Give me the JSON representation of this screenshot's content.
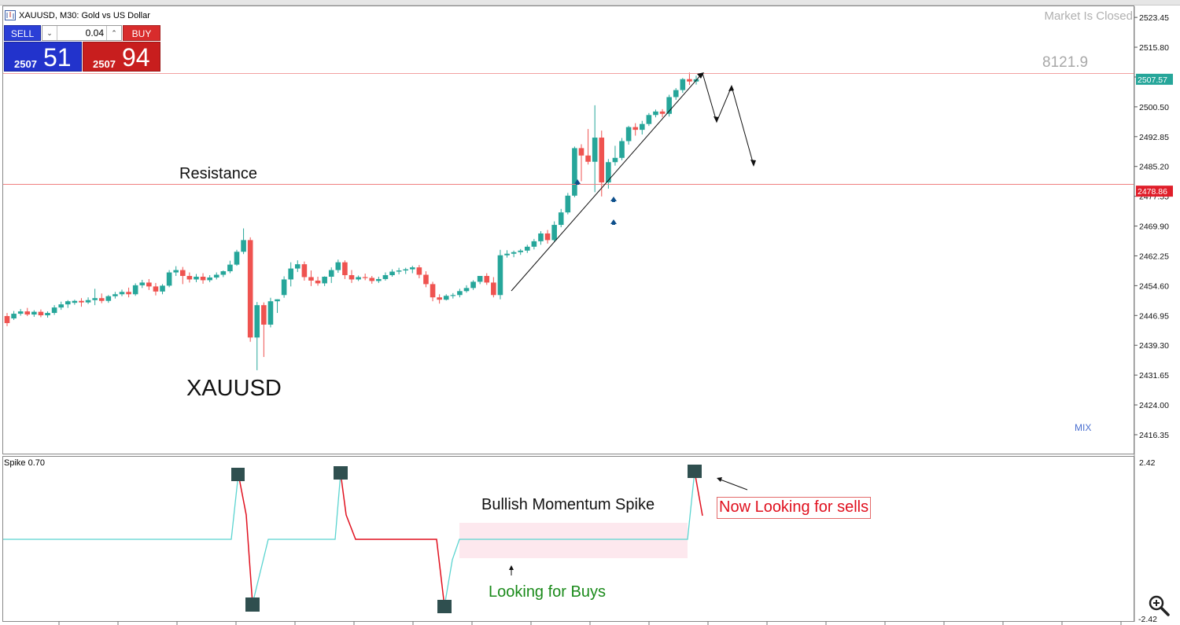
{
  "window": {
    "title": "XAUUSD, M30:  Gold vs US Dollar",
    "status": "Market Is Closed",
    "counter": "8121.9"
  },
  "trade_panel": {
    "sell_label": "SELL",
    "buy_label": "BUY",
    "volume": "0.04",
    "sell_small": "2507",
    "sell_big": "51",
    "buy_small": "2507",
    "buy_big": "94"
  },
  "annotations": {
    "resistance": "Resistance",
    "symbol": "XAUUSD",
    "mix": "MIX",
    "momentum": "Bullish Momentum Spike",
    "buys": "Looking for Buys",
    "sells": "Now Looking for sells"
  },
  "indicator": {
    "name": "Spike 0.70",
    "top_label": "2.42",
    "bottom_label": "-2.42"
  },
  "colors": {
    "bull": "#26a69a",
    "bear": "#ef5350",
    "resistance_line": "#f08080",
    "spike_line": "#5bd4d0",
    "spike_down": "#e0101e",
    "marker": "#2f4f4f",
    "arrow_marker": "#0d4f8b",
    "highlight": "#fde8ee"
  },
  "chart_data": {
    "type": "candlestick",
    "symbol": "XAUUSD",
    "timeframe": "M30",
    "y_ticks": [
      "2523.45",
      "2515.80",
      "2508.15",
      "2500.50",
      "2492.85",
      "2485.20",
      "2477.55",
      "2469.90",
      "2462.25",
      "2454.60",
      "2446.95",
      "2439.30",
      "2431.65",
      "2424.00",
      "2416.35"
    ],
    "ylim": [
      2411.5,
      2526.3
    ],
    "current_price": "2507.57",
    "resistance_price": "2478.86",
    "candles": [
      [
        2446.8,
        2447.6,
        2445.0,
        2444.2
      ],
      [
        2446.2,
        2448.1,
        2447.4,
        2445.8
      ],
      [
        2447.4,
        2448.6,
        2448.0,
        2446.9
      ],
      [
        2448.0,
        2448.9,
        2447.2,
        2446.8
      ],
      [
        2447.2,
        2448.3,
        2447.9,
        2446.6
      ],
      [
        2447.9,
        2448.5,
        2447.0,
        2446.5
      ],
      [
        2447.0,
        2448.0,
        2447.6,
        2446.4
      ],
      [
        2447.6,
        2449.6,
        2449.0,
        2447.1
      ],
      [
        2449.0,
        2450.5,
        2449.8,
        2448.4
      ],
      [
        2449.8,
        2450.9,
        2450.6,
        2448.9
      ],
      [
        2450.2,
        2451.0,
        2450.7,
        2449.7
      ],
      [
        2450.7,
        2451.4,
        2450.3,
        2449.2
      ],
      [
        2450.3,
        2451.6,
        2450.9,
        2449.9
      ],
      [
        2450.9,
        2453.8,
        2451.4,
        2449.6
      ],
      [
        2451.4,
        2452.6,
        2450.7,
        2450.1
      ],
      [
        2450.7,
        2452.2,
        2451.9,
        2450.2
      ],
      [
        2451.9,
        2453.0,
        2452.4,
        2451.3
      ],
      [
        2452.4,
        2453.6,
        2453.0,
        2451.9
      ],
      [
        2453.0,
        2454.1,
        2452.4,
        2451.6
      ],
      [
        2452.4,
        2455.2,
        2454.7,
        2452.0
      ],
      [
        2454.7,
        2456.1,
        2455.4,
        2454.0
      ],
      [
        2455.4,
        2456.3,
        2454.4,
        2453.5
      ],
      [
        2454.4,
        2455.3,
        2453.1,
        2452.1
      ],
      [
        2453.1,
        2455.0,
        2454.6,
        2452.4
      ],
      [
        2454.6,
        2458.6,
        2458.0,
        2454.2
      ],
      [
        2458.0,
        2459.6,
        2458.6,
        2457.1
      ],
      [
        2458.6,
        2459.4,
        2457.1,
        2455.0
      ],
      [
        2457.1,
        2458.0,
        2456.2,
        2455.4
      ],
      [
        2456.2,
        2457.6,
        2456.9,
        2455.5
      ],
      [
        2456.9,
        2457.8,
        2456.0,
        2455.1
      ],
      [
        2456.0,
        2457.3,
        2456.7,
        2455.5
      ],
      [
        2456.7,
        2458.0,
        2457.4,
        2456.2
      ],
      [
        2457.4,
        2458.5,
        2458.3,
        2456.8
      ],
      [
        2458.3,
        2461.0,
        2460.0,
        2457.8
      ],
      [
        2460.0,
        2463.8,
        2463.3,
        2459.7
      ],
      [
        2463.3,
        2469.3,
        2466.3,
        2462.7
      ],
      [
        2466.3,
        2467.0,
        2441.3,
        2440.2
      ],
      [
        2441.3,
        2450.4,
        2449.6,
        2432.9
      ],
      [
        2449.6,
        2450.3,
        2444.6,
        2436.3
      ],
      [
        2444.6,
        2451.5,
        2450.6,
        2443.9
      ],
      [
        2450.6,
        2451.1,
        2451.1,
        2447.6
      ],
      [
        2452.2,
        2457.0,
        2456.2,
        2451.5
      ],
      [
        2456.2,
        2460.6,
        2459.0,
        2454.4
      ],
      [
        2459.0,
        2461.1,
        2460.1,
        2458.1
      ],
      [
        2460.1,
        2460.8,
        2456.8,
        2455.9
      ],
      [
        2456.8,
        2458.5,
        2455.9,
        2454.5
      ],
      [
        2455.9,
        2456.9,
        2455.2,
        2454.6
      ],
      [
        2455.2,
        2457.0,
        2456.9,
        2454.5
      ],
      [
        2456.9,
        2459.3,
        2458.6,
        2455.3
      ],
      [
        2458.6,
        2461.3,
        2460.6,
        2457.9
      ],
      [
        2460.6,
        2461.1,
        2457.3,
        2456.3
      ],
      [
        2457.3,
        2458.6,
        2456.2,
        2455.3
      ],
      [
        2456.2,
        2457.2,
        2456.8,
        2455.8
      ],
      [
        2456.8,
        2457.7,
        2456.6,
        2456.0
      ],
      [
        2456.6,
        2457.1,
        2455.8,
        2455.1
      ],
      [
        2455.8,
        2456.9,
        2456.3,
        2455.3
      ],
      [
        2456.3,
        2458.0,
        2457.3,
        2455.9
      ],
      [
        2457.3,
        2458.8,
        2458.2,
        2456.9
      ],
      [
        2458.2,
        2459.2,
        2458.5,
        2457.5
      ],
      [
        2458.5,
        2459.2,
        2458.8,
        2457.6
      ],
      [
        2458.8,
        2459.7,
        2459.3,
        2457.8
      ],
      [
        2459.3,
        2459.9,
        2457.4,
        2456.5
      ],
      [
        2457.4,
        2458.3,
        2455.0,
        2454.2
      ],
      [
        2455.0,
        2455.6,
        2451.6,
        2450.6
      ],
      [
        2451.6,
        2452.4,
        2451.0,
        2450.0
      ],
      [
        2451.0,
        2452.4,
        2452.0,
        2450.8
      ],
      [
        2452.0,
        2452.7,
        2452.2,
        2451.3
      ],
      [
        2452.2,
        2453.8,
        2453.2,
        2451.6
      ],
      [
        2453.2,
        2454.7,
        2454.0,
        2452.8
      ],
      [
        2454.0,
        2456.0,
        2455.6,
        2453.5
      ],
      [
        2455.6,
        2457.1,
        2457.1,
        2455.0
      ],
      [
        2457.1,
        2457.8,
        2455.4,
        2454.8
      ],
      [
        2455.4,
        2456.8,
        2452.2,
        2451.6
      ],
      [
        2452.2,
        2463.8,
        2462.4,
        2451.1
      ],
      [
        2462.4,
        2463.7,
        2462.8,
        2461.8
      ],
      [
        2462.8,
        2463.6,
        2463.2,
        2461.9
      ],
      [
        2463.2,
        2464.0,
        2463.6,
        2462.5
      ],
      [
        2463.6,
        2465.1,
        2464.6,
        2463.0
      ],
      [
        2464.6,
        2466.6,
        2466.0,
        2463.9
      ],
      [
        2466.0,
        2468.6,
        2468.0,
        2465.1
      ],
      [
        2468.0,
        2468.9,
        2466.3,
        2465.4
      ],
      [
        2466.3,
        2471.1,
        2470.2,
        2465.9
      ],
      [
        2470.2,
        2474.3,
        2473.4,
        2469.6
      ],
      [
        2473.4,
        2478.4,
        2477.7,
        2472.9
      ],
      [
        2477.7,
        2490.3,
        2489.9,
        2477.3
      ],
      [
        2489.9,
        2490.9,
        2488.0,
        2481.4
      ],
      [
        2488.0,
        2494.8,
        2486.4,
        2485.7
      ],
      [
        2486.4,
        2500.9,
        2492.6,
        2478.6
      ],
      [
        2492.6,
        2494.4,
        2481.1,
        2477.5
      ],
      [
        2481.1,
        2487.1,
        2486.3,
        2479.5
      ],
      [
        2486.3,
        2490.5,
        2487.4,
        2485.4
      ],
      [
        2487.4,
        2492.5,
        2491.7,
        2486.8
      ],
      [
        2491.7,
        2495.6,
        2495.3,
        2490.8
      ],
      [
        2495.3,
        2496.3,
        2494.6,
        2493.1
      ],
      [
        2494.6,
        2496.9,
        2496.1,
        2493.4
      ],
      [
        2496.1,
        2498.9,
        2498.4,
        2495.6
      ],
      [
        2498.4,
        2499.8,
        2499.3,
        2497.8
      ],
      [
        2499.3,
        2499.9,
        2498.7,
        2497.8
      ],
      [
        2498.7,
        2503.6,
        2503.0,
        2498.0
      ],
      [
        2503.0,
        2505.3,
        2504.8,
        2502.3
      ],
      [
        2504.8,
        2507.9,
        2507.6,
        2504.1
      ],
      [
        2507.6,
        2509.3,
        2507.0,
        2506.1
      ],
      [
        2507.0,
        2508.5,
        2507.57,
        2506.2
      ]
    ],
    "spike_range": [
      -2.42,
      2.42
    ]
  }
}
